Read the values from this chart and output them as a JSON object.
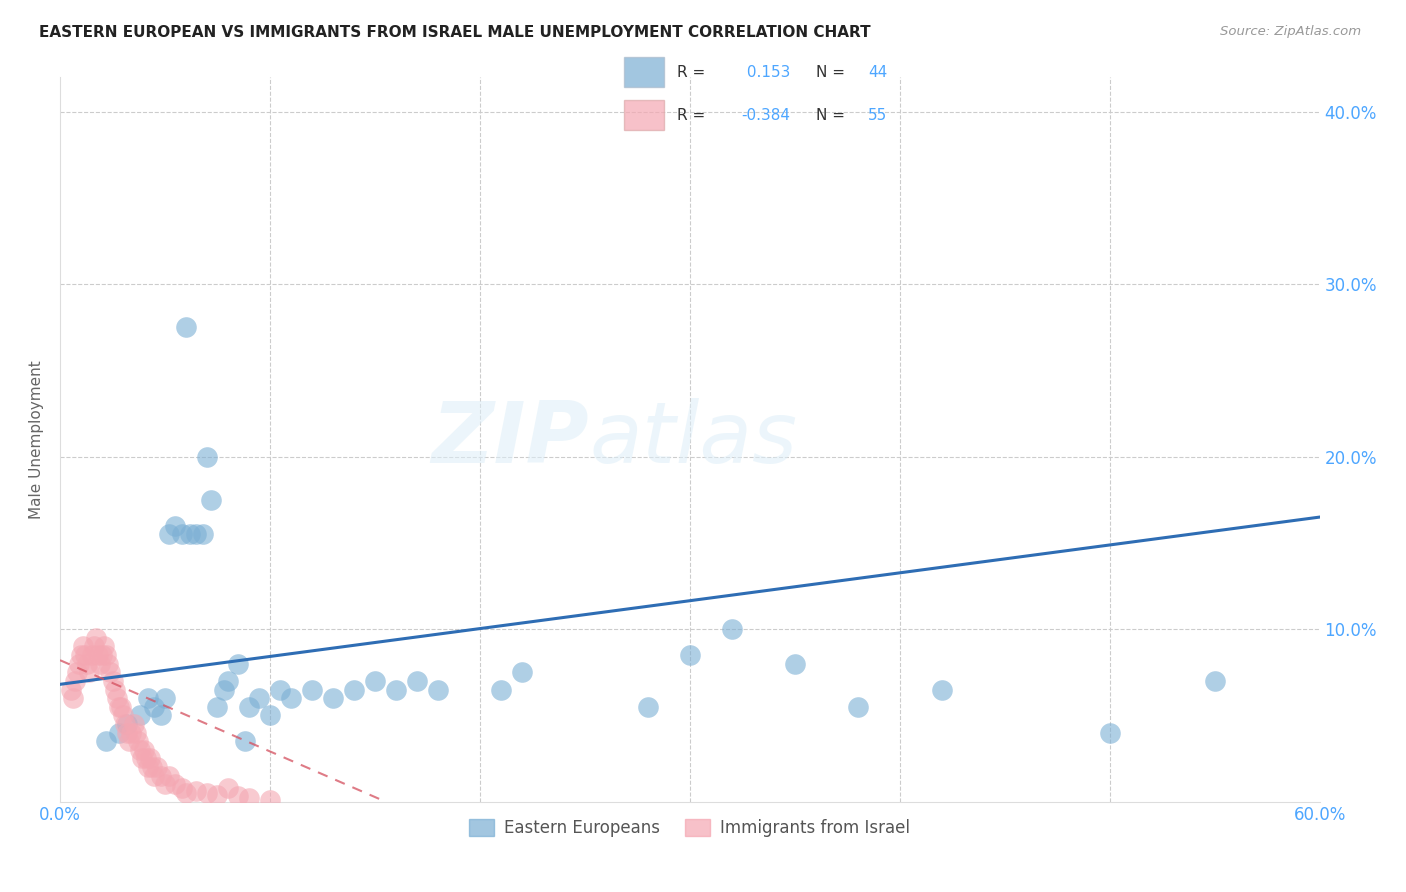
{
  "title": "EASTERN EUROPEAN VS IMMIGRANTS FROM ISRAEL MALE UNEMPLOYMENT CORRELATION CHART",
  "source": "Source: ZipAtlas.com",
  "ylabel": "Male Unemployment",
  "xlim": [
    0.0,
    0.6
  ],
  "ylim": [
    0.0,
    0.42
  ],
  "legend1_label": "Eastern Europeans",
  "legend2_label": "Immigrants from Israel",
  "r1": 0.153,
  "n1": 44,
  "r2": -0.384,
  "n2": 55,
  "blue_color": "#7bafd4",
  "pink_color": "#f4a7b2",
  "blue_line_color": "#2e6db4",
  "pink_line_color": "#d44f5e",
  "watermark_zip": "ZIP",
  "watermark_atlas": "atlas",
  "blue_points_x": [
    0.022,
    0.028,
    0.032,
    0.038,
    0.042,
    0.045,
    0.048,
    0.05,
    0.052,
    0.055,
    0.058,
    0.06,
    0.062,
    0.065,
    0.068,
    0.07,
    0.072,
    0.075,
    0.078,
    0.08,
    0.085,
    0.088,
    0.09,
    0.095,
    0.1,
    0.105,
    0.11,
    0.12,
    0.13,
    0.14,
    0.15,
    0.16,
    0.17,
    0.18,
    0.21,
    0.22,
    0.28,
    0.3,
    0.32,
    0.35,
    0.38,
    0.42,
    0.5,
    0.55
  ],
  "blue_points_y": [
    0.035,
    0.04,
    0.045,
    0.05,
    0.06,
    0.055,
    0.05,
    0.06,
    0.155,
    0.16,
    0.155,
    0.275,
    0.155,
    0.155,
    0.155,
    0.2,
    0.175,
    0.055,
    0.065,
    0.07,
    0.08,
    0.035,
    0.055,
    0.06,
    0.05,
    0.065,
    0.06,
    0.065,
    0.06,
    0.065,
    0.07,
    0.065,
    0.07,
    0.065,
    0.065,
    0.075,
    0.055,
    0.085,
    0.1,
    0.08,
    0.055,
    0.065,
    0.04,
    0.07
  ],
  "pink_points_x": [
    0.005,
    0.006,
    0.007,
    0.008,
    0.009,
    0.01,
    0.011,
    0.012,
    0.013,
    0.014,
    0.015,
    0.016,
    0.017,
    0.018,
    0.019,
    0.02,
    0.021,
    0.022,
    0.023,
    0.024,
    0.025,
    0.026,
    0.027,
    0.028,
    0.029,
    0.03,
    0.031,
    0.032,
    0.033,
    0.034,
    0.035,
    0.036,
    0.037,
    0.038,
    0.039,
    0.04,
    0.041,
    0.042,
    0.043,
    0.044,
    0.045,
    0.046,
    0.048,
    0.05,
    0.052,
    0.055,
    0.058,
    0.06,
    0.065,
    0.07,
    0.075,
    0.08,
    0.085,
    0.09,
    0.1
  ],
  "pink_points_y": [
    0.065,
    0.06,
    0.07,
    0.075,
    0.08,
    0.085,
    0.09,
    0.085,
    0.08,
    0.075,
    0.085,
    0.09,
    0.095,
    0.085,
    0.08,
    0.085,
    0.09,
    0.085,
    0.08,
    0.075,
    0.07,
    0.065,
    0.06,
    0.055,
    0.055,
    0.05,
    0.045,
    0.04,
    0.035,
    0.04,
    0.045,
    0.04,
    0.035,
    0.03,
    0.025,
    0.03,
    0.025,
    0.02,
    0.025,
    0.02,
    0.015,
    0.02,
    0.015,
    0.01,
    0.015,
    0.01,
    0.008,
    0.005,
    0.006,
    0.005,
    0.004,
    0.008,
    0.003,
    0.002,
    0.001
  ],
  "blue_line_x": [
    0.0,
    0.6
  ],
  "blue_line_y": [
    0.068,
    0.165
  ],
  "pink_line_x": [
    0.0,
    0.155
  ],
  "pink_line_y": [
    0.082,
    0.0
  ]
}
